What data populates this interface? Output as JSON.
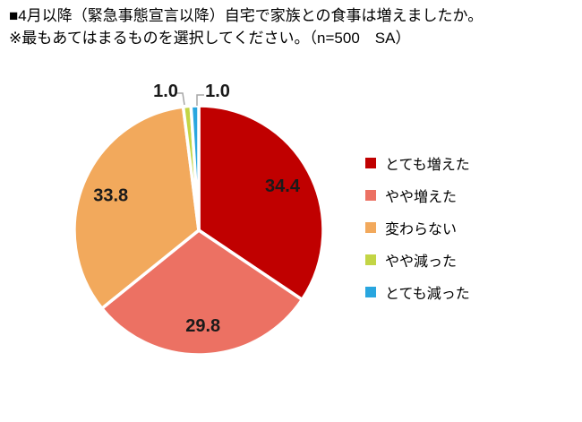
{
  "header": {
    "title_line1": "■4月以降（緊急事態宣言以降）自宅で家族との食事は増えましたか。",
    "title_line2": "※最もあてはまるものを選択してください。（n=500　SA）"
  },
  "chart_data": {
    "type": "pie",
    "title": "4月以降（緊急事態宣言以降）自宅で家族との食事は増えましたか。",
    "subtitle": "※最もあてはまるものを選択してください。（n=500　SA）",
    "unit": "%",
    "categories": [
      "とても増えた",
      "やや増えた",
      "変わらない",
      "やや減った",
      "とても減った"
    ],
    "values": [
      34.4,
      29.8,
      33.8,
      1.0,
      1.0
    ],
    "colors": [
      "#C00000",
      "#EC7163",
      "#F2A95C",
      "#C3D545",
      "#29A6DF"
    ],
    "start_angle": 0,
    "direction": "clockwise",
    "legend_position": "right",
    "slice_border_color": "#FFFFFF",
    "data_label_color": "#1A1A1A",
    "leader_line_color": "#A6A6A6"
  }
}
